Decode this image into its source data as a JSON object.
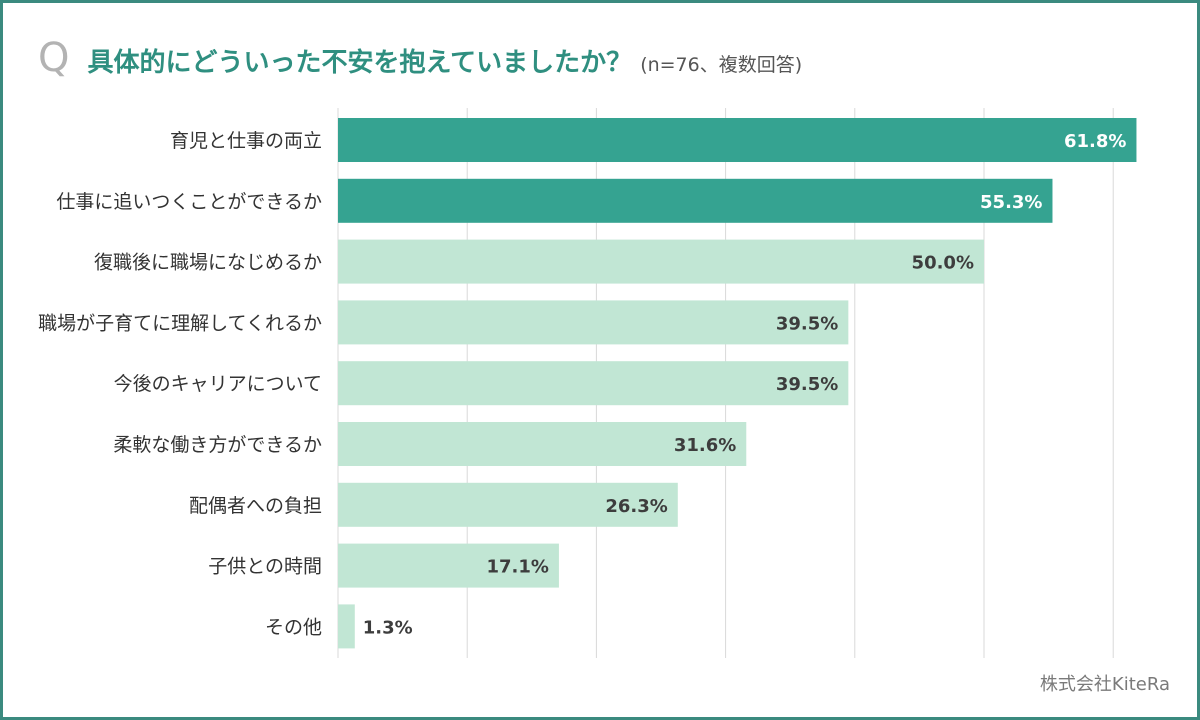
{
  "header": {
    "q_mark": "Q",
    "title": "具体的にどういった不安を抱えていましたか？",
    "subtitle": "(n=76、複数回答)"
  },
  "credit": "株式会社KiteRa",
  "colors": {
    "frame": "#3b8a7f",
    "title": "#2f8f80",
    "bar_dark": "#35a391",
    "bar_light": "#c1e6d4",
    "grid": "#d9d9d9",
    "label_on_dark": "#ffffff",
    "label_on_light": "#3d3d3d"
  },
  "chart_data": {
    "type": "bar",
    "orientation": "horizontal",
    "title": "具体的にどういった不安を抱えていましたか？",
    "subtitle": "(n=76、複数回答)",
    "unit": "%",
    "categories": [
      "育児と仕事の両立",
      "仕事に追いつくことができるか",
      "復職後に職場になじめるか",
      "職場が子育てに理解してくれるか",
      "今後のキャリアについて",
      "柔軟な働き方ができるか",
      "配偶者への負担",
      "子供との時間",
      "その他"
    ],
    "values": [
      61.8,
      55.3,
      50.0,
      39.5,
      39.5,
      31.6,
      26.3,
      17.1,
      1.3
    ],
    "value_labels": [
      "61.8%",
      "55.3%",
      "50.0%",
      "39.5%",
      "39.5%",
      "31.6%",
      "26.3%",
      "17.1%",
      "1.3%"
    ],
    "highlighted": [
      true,
      true,
      false,
      false,
      false,
      false,
      false,
      false,
      false
    ],
    "xlim": [
      0,
      60
    ],
    "grid": true,
    "grid_step": 10,
    "legend": "none"
  }
}
